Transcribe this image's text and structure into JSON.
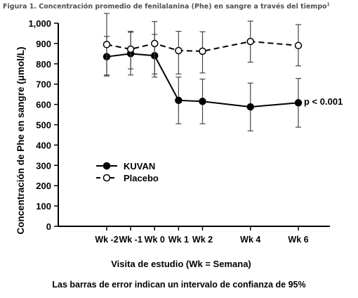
{
  "figure": {
    "title": "Figura 1. Concentración promedio de fenilalanina (Phe) en sangre a través del tiempo",
    "title_sup": "1",
    "caption": "Las barras de error indican un intervalo de confianza de 95%"
  },
  "chart_data": {
    "type": "line",
    "xlabel": "Visita de estudio (Wk = Semana)",
    "ylabel": "Concentración de Phe en sangre (μmol/L)",
    "ylim": [
      0,
      1000
    ],
    "yticks": [
      0,
      100,
      200,
      300,
      400,
      500,
      600,
      700,
      800,
      900,
      1000
    ],
    "ytick_labels": [
      "0",
      "100",
      "200",
      "300",
      "400",
      "500",
      "600",
      "700",
      "800",
      "900",
      "1,000"
    ],
    "categories": [
      "Wk -2",
      "Wk -1",
      "Wk 0",
      "Wk 1",
      "Wk 2",
      "Wk 4",
      "Wk 6"
    ],
    "x": [
      -2,
      -1,
      0,
      1,
      2,
      4,
      6
    ],
    "annotation": "p < 0.001",
    "grid": false,
    "legend_position": "center-left",
    "series": [
      {
        "name": "KUVAN",
        "marker": "filled-circle",
        "line": "solid",
        "color": "#000000",
        "values": [
          835,
          850,
          840,
          620,
          615,
          588,
          608
        ],
        "ci_low": [
          740,
          745,
          735,
          505,
          505,
          470,
          488
        ],
        "ci_high": [
          935,
          955,
          945,
          735,
          725,
          705,
          728
        ]
      },
      {
        "name": "Placebo",
        "marker": "open-circle",
        "line": "dashed",
        "color": "#000000",
        "values": [
          895,
          872,
          900,
          865,
          862,
          910,
          890
        ],
        "ci_low": [
          745,
          775,
          750,
          750,
          755,
          808,
          790
        ],
        "ci_high": [
          1048,
          960,
          1008,
          960,
          958,
          1010,
          993
        ]
      }
    ]
  }
}
